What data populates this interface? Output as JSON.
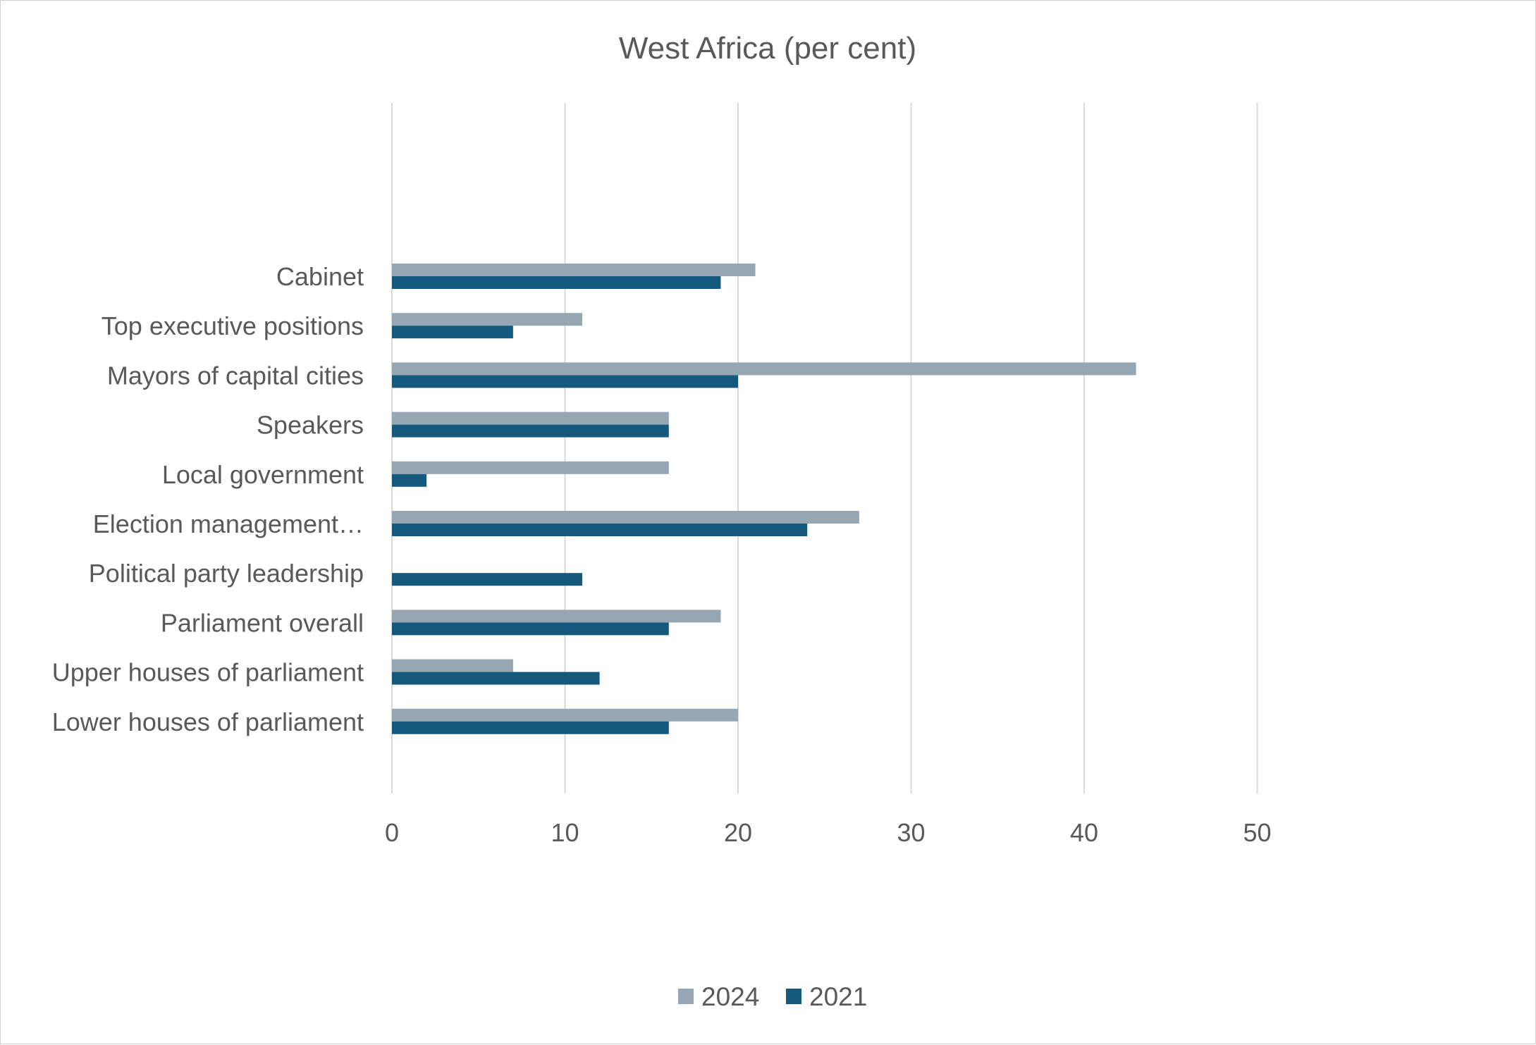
{
  "chart_data": {
    "type": "bar",
    "orientation": "horizontal",
    "title": "West Africa (per cent)",
    "xlabel": "",
    "ylabel": "",
    "xlim": [
      0,
      50
    ],
    "xticks": [
      0,
      10,
      20,
      30,
      40,
      50
    ],
    "xtick_labels": [
      "0",
      "10",
      "20",
      "30",
      "40",
      "50"
    ],
    "grid": "vertical",
    "legend_position": "bottom",
    "categories": [
      "Cabinet",
      "Top executive positions",
      "Mayors of capital cities",
      "Speakers",
      "Local government",
      "Election management…",
      "Political party leadership",
      "Parliament overall",
      "Upper houses of parliament",
      "Lower houses of parliament"
    ],
    "series": [
      {
        "name": "2024",
        "color": "#97A6B3",
        "values": [
          21,
          11,
          43,
          16,
          16,
          27,
          0,
          19,
          7,
          20
        ]
      },
      {
        "name": "2021",
        "color": "#155A7C",
        "values": [
          19,
          7,
          20,
          16,
          2,
          24,
          11,
          16,
          12,
          16
        ]
      }
    ]
  }
}
